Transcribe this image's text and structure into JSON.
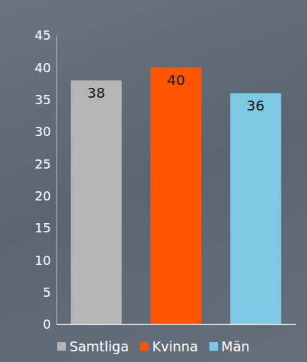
{
  "chart_data": {
    "type": "bar",
    "categories": [
      "Samtliga",
      "Kvinna",
      "Män"
    ],
    "values": [
      38,
      40,
      36
    ],
    "colors": [
      "#b5b5b5",
      "#ff5500",
      "#7ec8e3"
    ],
    "ylim": [
      0,
      45
    ],
    "yticks": [
      0,
      5,
      10,
      15,
      20,
      25,
      30,
      35,
      40,
      45
    ],
    "grid": false,
    "data_labels": true,
    "tick_labels": "y",
    "legend": "bottom"
  }
}
